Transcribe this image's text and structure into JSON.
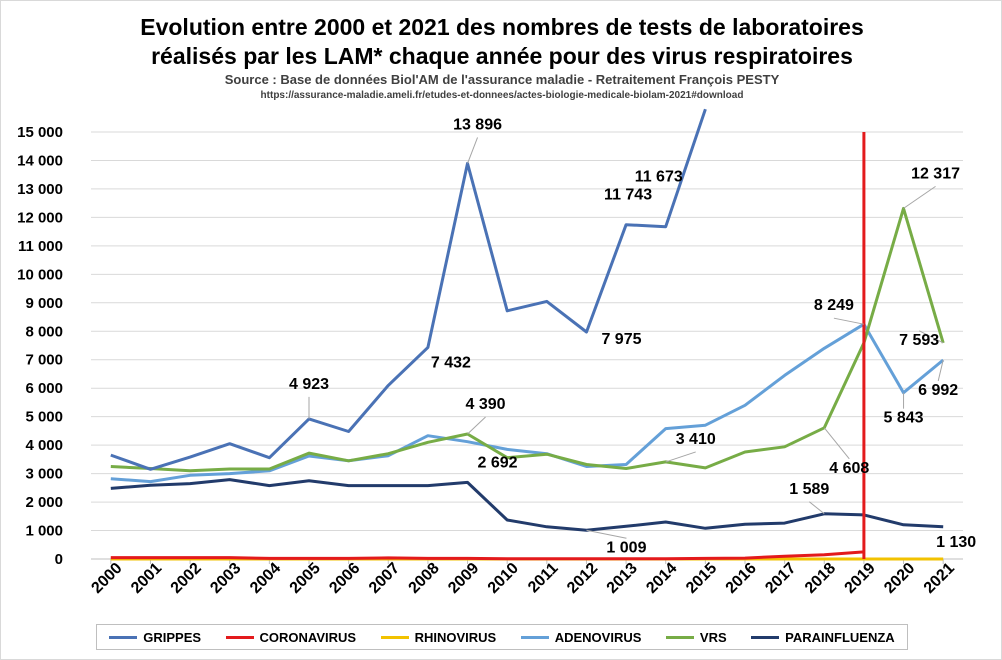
{
  "title_line1": "Evolution entre 2000 et 2021 des nombres de tests de laboratoires",
  "title_line2": "réalisés par les LAM* chaque année pour des virus respiratoires",
  "source": "Source : Base de données Biol'AM de l'assurance maladie - Retraitement François PESTY",
  "url": "https://assurance-maladie.ameli.fr/etudes-et-donnees/actes-biologie-medicale-biolam-2021#download",
  "chart_data": {
    "type": "line",
    "categories": [
      "2000",
      "2001",
      "2002",
      "2003",
      "2004",
      "2005",
      "2006",
      "2007",
      "2008",
      "2009",
      "2010",
      "2011",
      "2012",
      "2013",
      "2014",
      "2015",
      "2016",
      "2017",
      "2018",
      "2019",
      "2020",
      "2021"
    ],
    "ylim": [
      0,
      15000
    ],
    "yticks": [
      0,
      1000,
      2000,
      3000,
      4000,
      5000,
      6000,
      7000,
      8000,
      9000,
      10000,
      11000,
      12000,
      13000,
      14000,
      15000
    ],
    "ytick_labels": [
      "0",
      "1 000",
      "2 000",
      "3 000",
      "4 000",
      "5 000",
      "6 000",
      "7 000",
      "8 000",
      "9 000",
      "10 000",
      "11 000",
      "12 000",
      "13 000",
      "14 000",
      "15 000"
    ],
    "grid": true,
    "legend_position": "bottom",
    "vertical_marker": {
      "at": "2019",
      "color": "#e31a1c"
    },
    "series": [
      {
        "name": "GRIPPES",
        "color": "#4a72b5",
        "values": [
          3650,
          3150,
          3580,
          4050,
          3560,
          4923,
          4480,
          6100,
          7432,
          13896,
          8720,
          9050,
          7975,
          11743,
          11673,
          15800,
          null,
          null,
          null,
          null,
          null,
          null
        ]
      },
      {
        "name": "CORONAVIRUS",
        "color": "#e31a1c",
        "values": [
          50,
          50,
          50,
          50,
          20,
          20,
          20,
          40,
          20,
          20,
          10,
          10,
          10,
          10,
          10,
          20,
          30,
          100,
          150,
          250,
          null,
          null
        ]
      },
      {
        "name": "RHINOVIRUS",
        "color": "#f2c200",
        "values": [
          0,
          0,
          0,
          0,
          0,
          0,
          0,
          0,
          0,
          0,
          0,
          0,
          0,
          0,
          0,
          0,
          0,
          0,
          0,
          0,
          0,
          0
        ]
      },
      {
        "name": "ADENOVIRUS",
        "color": "#64a0d8",
        "values": [
          2820,
          2720,
          2940,
          3000,
          3100,
          3620,
          3450,
          3630,
          4330,
          4120,
          3850,
          3700,
          3250,
          3320,
          4580,
          4700,
          5400,
          6450,
          7400,
          8249,
          5843,
          6992
        ]
      },
      {
        "name": "VRS",
        "color": "#77ac46",
        "values": [
          3250,
          3180,
          3100,
          3160,
          3160,
          3720,
          3450,
          3700,
          4100,
          4390,
          3560,
          3680,
          3320,
          3180,
          3410,
          3200,
          3760,
          3940,
          4608,
          7593,
          12317,
          7593
        ]
      },
      {
        "name": "PARAINFLUENZA",
        "color": "#223b6b",
        "values": [
          2480,
          2590,
          2650,
          2790,
          2580,
          2750,
          2580,
          2580,
          2580,
          2692,
          1370,
          1130,
          1009,
          1150,
          1300,
          1080,
          1220,
          1260,
          1589,
          1550,
          1200,
          1130
        ]
      }
    ],
    "data_labels": [
      {
        "series": "GRIPPES",
        "category": "2005",
        "text": "4 923"
      },
      {
        "series": "GRIPPES",
        "category": "2008",
        "text": "7 432"
      },
      {
        "series": "GRIPPES",
        "category": "2009",
        "text": "13 896"
      },
      {
        "series": "GRIPPES",
        "category": "2012",
        "text": "7 975"
      },
      {
        "series": "GRIPPES",
        "category": "2013",
        "text": "11 743"
      },
      {
        "series": "GRIPPES",
        "category": "2014",
        "text": "11 673"
      },
      {
        "series": "VRS",
        "category": "2009",
        "text": "4 390"
      },
      {
        "series": "VRS",
        "category": "2014",
        "text": "3 410"
      },
      {
        "series": "VRS",
        "category": "2018",
        "text": "4 608"
      },
      {
        "series": "VRS",
        "category": "2020",
        "text": "12 317"
      },
      {
        "series": "VRS",
        "category": "2021",
        "text": "7 593"
      },
      {
        "series": "ADENOVIRUS",
        "category": "2019",
        "text": "8 249"
      },
      {
        "series": "ADENOVIRUS",
        "category": "2020",
        "text": "5 843"
      },
      {
        "series": "ADENOVIRUS",
        "category": "2021",
        "text": "6 992"
      },
      {
        "series": "PARAINFLUENZA",
        "category": "2009",
        "text": "2 692"
      },
      {
        "series": "PARAINFLUENZA",
        "category": "2012",
        "text": "1 009"
      },
      {
        "series": "PARAINFLUENZA",
        "category": "2018",
        "text": "1 589"
      },
      {
        "series": "PARAINFLUENZA",
        "category": "2021",
        "text": "1 130"
      }
    ]
  }
}
